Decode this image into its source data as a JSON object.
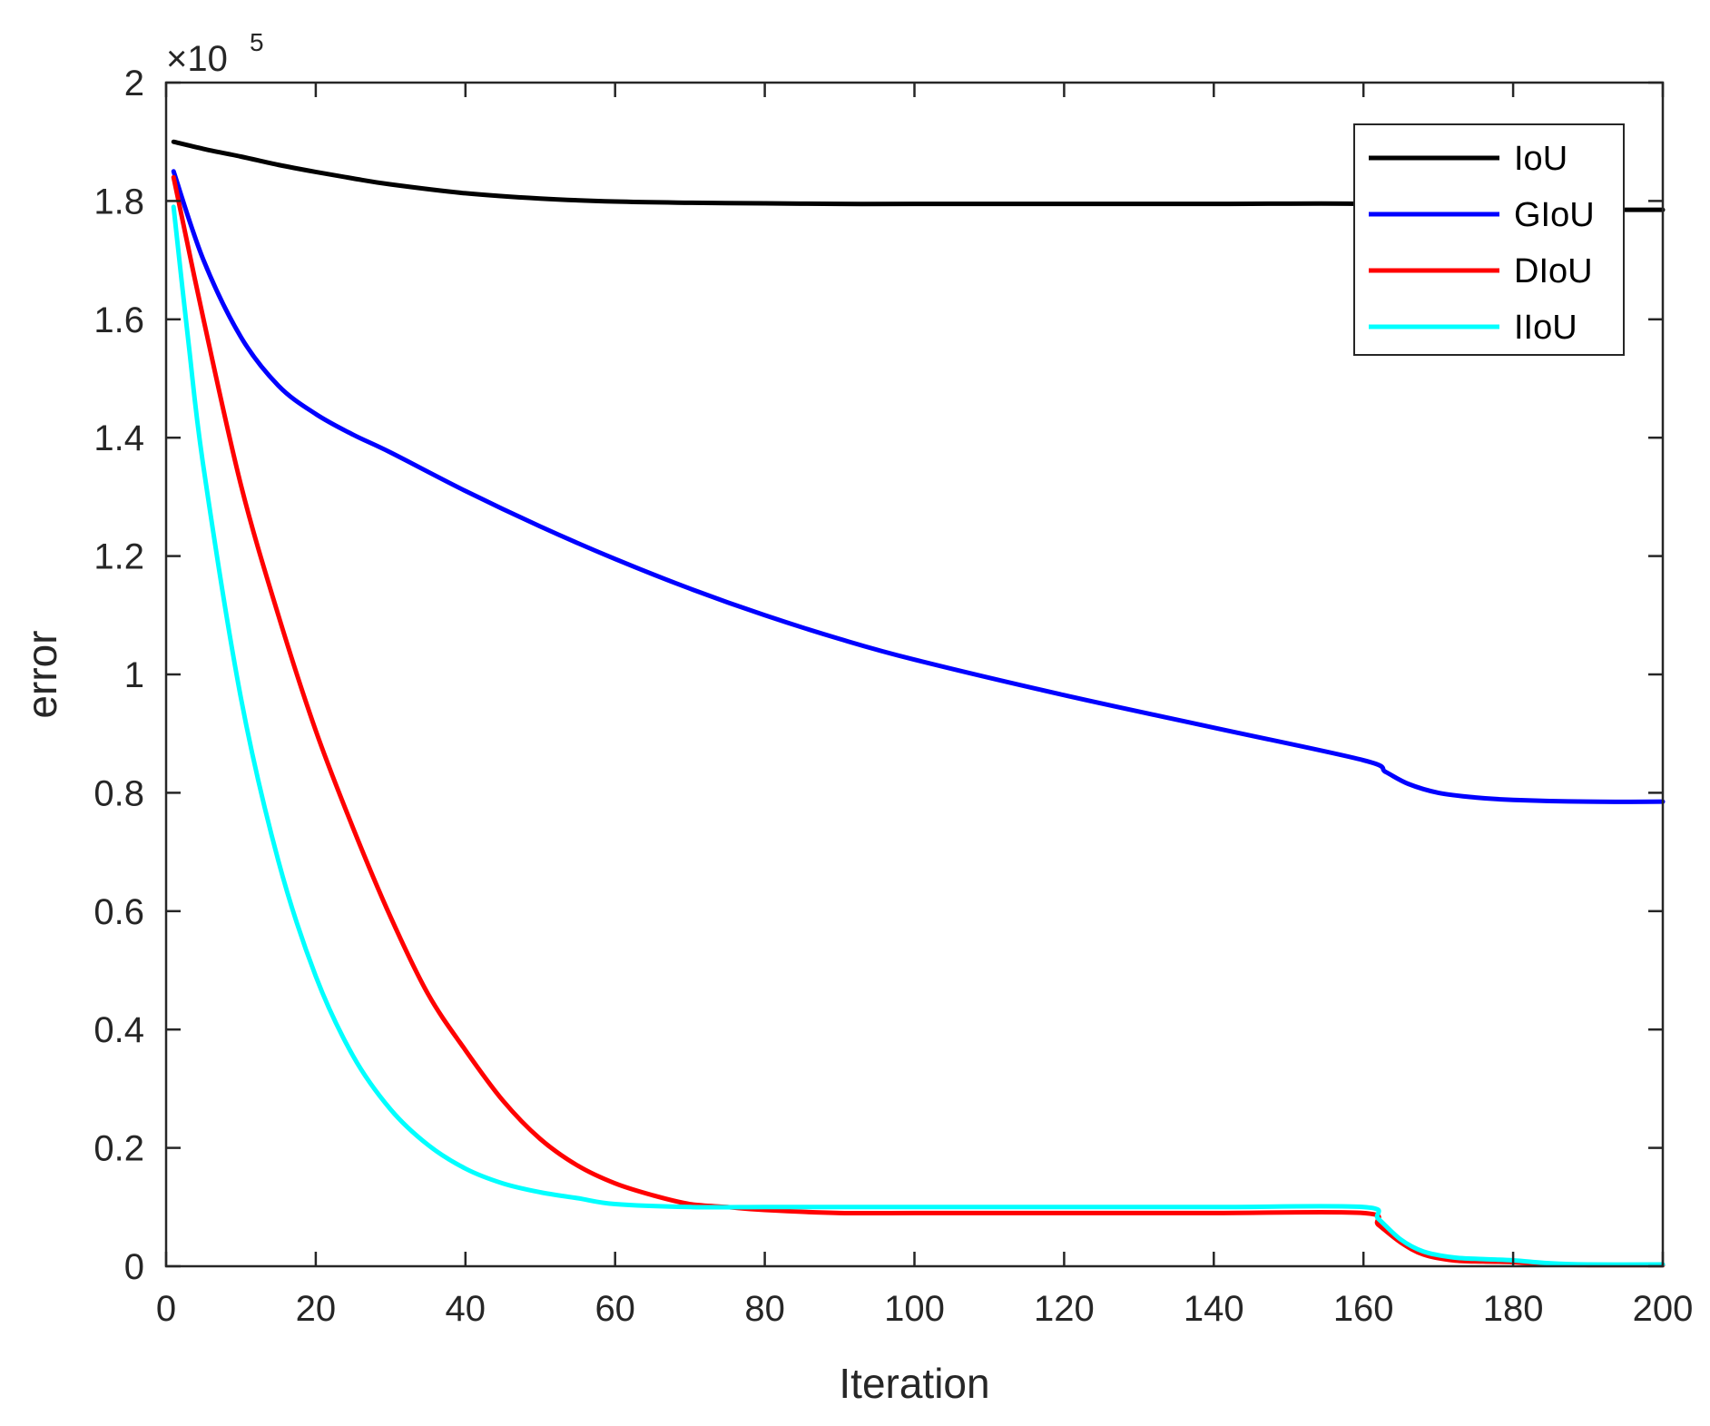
{
  "chart_data": {
    "type": "line",
    "xlabel": "Iteration",
    "ylabel": "error",
    "y_multiplier": {
      "symbol": "×",
      "base": "10",
      "exponent": "5",
      "value": 100000
    },
    "xlim": [
      0,
      200
    ],
    "ylim": [
      0,
      2
    ],
    "xticks": [
      0,
      20,
      40,
      60,
      80,
      100,
      120,
      140,
      160,
      180,
      200
    ],
    "yticks": [
      0,
      0.2,
      0.4,
      0.6,
      0.8,
      1,
      1.2,
      1.4,
      1.6,
      1.8,
      2
    ],
    "xtick_labels": [
      "0",
      "20",
      "40",
      "60",
      "80",
      "100",
      "120",
      "140",
      "160",
      "180",
      "200"
    ],
    "ytick_labels": [
      "0",
      "0.2",
      "0.4",
      "0.6",
      "0.8",
      "1",
      "1.2",
      "1.4",
      "1.6",
      "1.8",
      "2"
    ],
    "grid": false,
    "box": true,
    "legend_position": "top-right",
    "series": [
      {
        "name": "IoU",
        "color": "#000000",
        "x": [
          1,
          5,
          10,
          15,
          20,
          25,
          30,
          40,
          50,
          60,
          70,
          80,
          90,
          100,
          120,
          140,
          160,
          161,
          180,
          200
        ],
        "y": [
          1.9,
          1.888,
          1.875,
          1.861,
          1.849,
          1.838,
          1.828,
          1.813,
          1.804,
          1.799,
          1.797,
          1.796,
          1.795,
          1.795,
          1.795,
          1.795,
          1.795,
          1.785,
          1.785,
          1.785
        ]
      },
      {
        "name": "GIoU",
        "color": "#0000ff",
        "x": [
          1,
          5,
          10,
          15,
          20,
          25,
          30,
          40,
          50,
          60,
          70,
          80,
          90,
          100,
          120,
          140,
          160,
          163,
          166,
          170,
          175,
          180,
          190,
          200
        ],
        "y": [
          1.85,
          1.7,
          1.57,
          1.488,
          1.44,
          1.405,
          1.375,
          1.31,
          1.25,
          1.195,
          1.145,
          1.1,
          1.06,
          1.025,
          0.965,
          0.91,
          0.855,
          0.835,
          0.815,
          0.8,
          0.792,
          0.788,
          0.785,
          0.785
        ]
      },
      {
        "name": "DIoU",
        "color": "#ff0000",
        "x": [
          1,
          5,
          10,
          15,
          20,
          25,
          30,
          35,
          40,
          45,
          50,
          55,
          60,
          65,
          70,
          75,
          80,
          90,
          100,
          120,
          140,
          160,
          162,
          165,
          168,
          172,
          176,
          180,
          185,
          190,
          200
        ],
        "y": [
          1.84,
          1.6,
          1.32,
          1.1,
          0.905,
          0.74,
          0.59,
          0.46,
          0.365,
          0.28,
          0.215,
          0.17,
          0.14,
          0.12,
          0.105,
          0.1,
          0.095,
          0.09,
          0.09,
          0.09,
          0.09,
          0.09,
          0.07,
          0.04,
          0.02,
          0.01,
          0.008,
          0.007,
          0.003,
          0.002,
          0.002
        ]
      },
      {
        "name": "IIoU",
        "color": "#00ffff",
        "x": [
          1,
          3,
          5,
          10,
          15,
          20,
          25,
          30,
          35,
          40,
          45,
          50,
          55,
          60,
          70,
          80,
          90,
          100,
          120,
          140,
          160,
          162,
          165,
          168,
          172,
          176,
          180,
          185,
          190,
          200
        ],
        "y": [
          1.79,
          1.56,
          1.35,
          0.96,
          0.685,
          0.49,
          0.355,
          0.265,
          0.205,
          0.165,
          0.14,
          0.125,
          0.115,
          0.105,
          0.1,
          0.1,
          0.1,
          0.1,
          0.1,
          0.1,
          0.1,
          0.08,
          0.045,
          0.025,
          0.015,
          0.012,
          0.01,
          0.005,
          0.003,
          0.003
        ]
      }
    ]
  }
}
